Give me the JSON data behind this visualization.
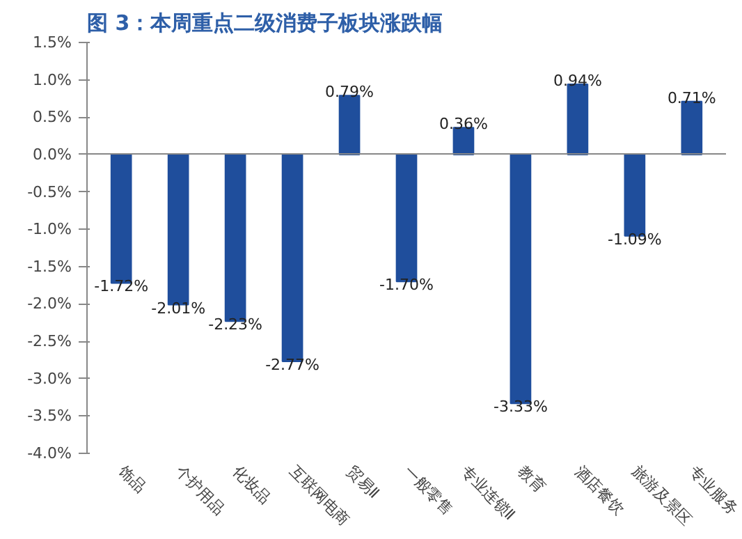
{
  "chart_data": {
    "type": "bar",
    "title": "图 3：本周重点二级消费子板块涨跌幅",
    "categories": [
      "饰品",
      "个护用品",
      "化妆品",
      "互联网电商",
      "贸易Ⅱ",
      "一般零售",
      "专业连锁Ⅱ",
      "教育",
      "酒店餐饮",
      "旅游及景区",
      "专业服务"
    ],
    "values": [
      -1.72,
      -2.01,
      -2.23,
      -2.77,
      0.79,
      -1.7,
      0.36,
      -3.33,
      0.94,
      -1.09,
      0.71
    ],
    "value_labels": [
      "-1.72%",
      "-2.01%",
      "-2.23%",
      "-2.77%",
      "0.79%",
      "-1.70%",
      "0.36%",
      "-3.33%",
      "0.94%",
      "-1.09%",
      "0.71%"
    ],
    "color": "#1f4e9c",
    "ylim": [
      -4.0,
      1.5
    ],
    "yticks": [
      {
        "value": -4.0,
        "label": "-4.0%"
      },
      {
        "value": -3.5,
        "label": "-3.5%"
      },
      {
        "value": -3.0,
        "label": "-3.0%"
      },
      {
        "value": -2.5,
        "label": "-2.5%"
      },
      {
        "value": -2.0,
        "label": "-2.0%"
      },
      {
        "value": -1.5,
        "label": "-1.5%"
      },
      {
        "value": -1.0,
        "label": "-1.0%"
      },
      {
        "value": -0.5,
        "label": "-0.5%"
      },
      {
        "value": 0.0,
        "label": "0.0%"
      },
      {
        "value": 0.5,
        "label": "0.5%"
      },
      {
        "value": 1.0,
        "label": "1.0%"
      },
      {
        "value": 1.5,
        "label": "1.5%"
      }
    ]
  }
}
